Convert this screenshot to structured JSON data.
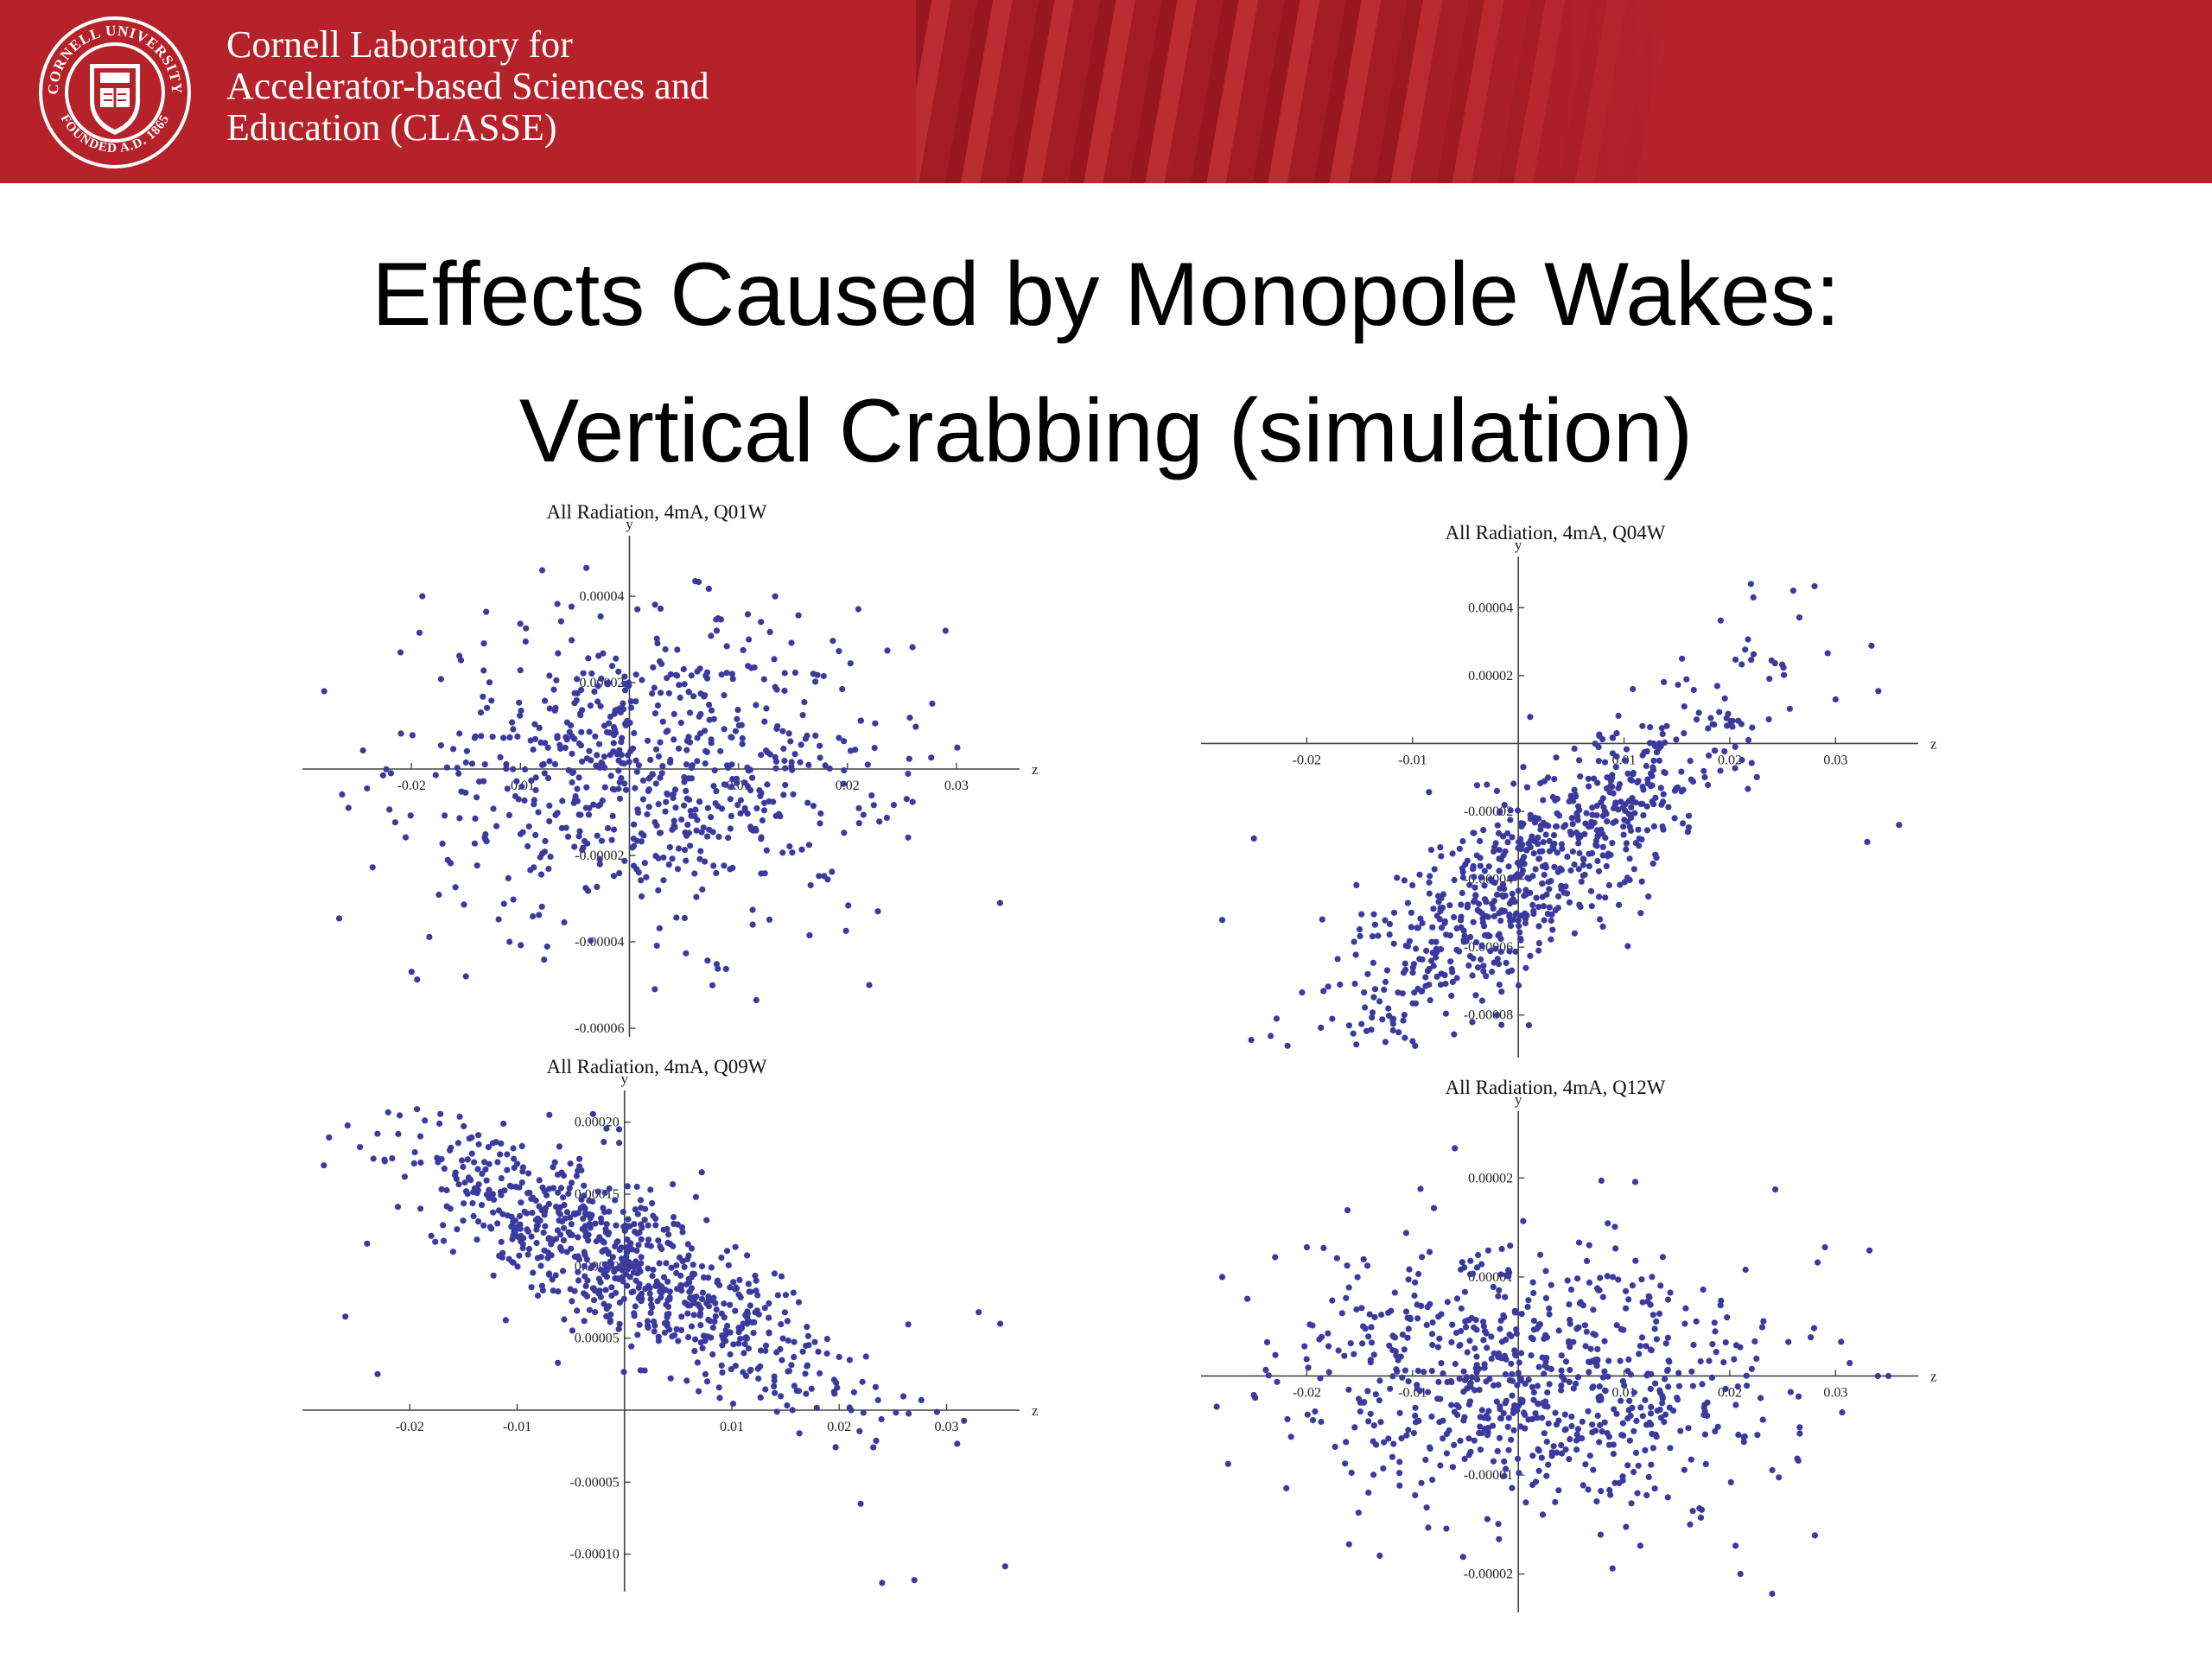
{
  "header": {
    "org_line1": "Cornell Laboratory for",
    "org_line2": "Accelerator-based Sciences and",
    "org_line3": "Education (CLASSE)",
    "seal_text_top": "CORNELL UNIVERSITY",
    "seal_text_bottom": "FOUNDED A.D. 1865",
    "colors": {
      "banner": "#b5222a",
      "text": "#ffffff"
    }
  },
  "slide": {
    "title_line1": "Effects Caused by Monopole Wakes:",
    "title_line2": "Vertical Crabbing (simulation)"
  },
  "chart_data": [
    {
      "type": "scatter",
      "title": "All Radiation, 4mA, Q01W",
      "xlabel": "z",
      "ylabel": "y",
      "xlim": [
        -0.03,
        0.035
      ],
      "ylim": [
        -6e-05,
        5e-05
      ],
      "xticks": [
        -0.02,
        -0.01,
        0.01,
        0.02,
        0.03
      ],
      "xtick_labels": [
        "-0.02",
        "-0.01",
        "0.01",
        "0.02",
        "0.03"
      ],
      "yticks": [
        -6e-05,
        -4e-05,
        -2e-05,
        2e-05,
        4e-05
      ],
      "ytick_labels": [
        "-0.00006",
        "-0.00004",
        "-0.00002",
        "0.00002",
        "0.00004"
      ],
      "marker_color": "#3b3b9e",
      "distribution": {
        "count": 700,
        "x_mean": 0.002,
        "x_sd": 0.011,
        "y_intercept": 0.0,
        "y_slope": 0.0,
        "y_sd": 1.7e-05
      },
      "points": [
        [
          -0.019,
          4e-05
        ],
        [
          -0.008,
          4.6e-05
        ],
        [
          0.021,
          3.7e-05
        ],
        [
          0.029,
          3.2e-05
        ],
        [
          -0.028,
          1.8e-05
        ],
        [
          -0.021,
          2.7e-05
        ],
        [
          0.034,
          -3.1e-05
        ],
        [
          -0.011,
          -4e-05
        ],
        [
          0.022,
          -5e-05
        ],
        [
          -0.015,
          -4.8e-05
        ]
      ]
    },
    {
      "type": "scatter",
      "title": "All Radiation, 4mA, Q04W",
      "xlabel": "z",
      "ylabel": "y",
      "xlim": [
        -0.03,
        0.037
      ],
      "ylim": [
        -9e-05,
        5e-05
      ],
      "xticks": [
        -0.02,
        -0.01,
        0.01,
        0.02,
        0.03
      ],
      "xtick_labels": [
        "-0.02",
        "-0.01",
        "0.01",
        "0.02",
        "0.03"
      ],
      "yticks": [
        -8e-05,
        -6e-05,
        -4e-05,
        -2e-05,
        2e-05,
        4e-05
      ],
      "ytick_labels": [
        "-0.00008",
        "-0.00006",
        "-0.00004",
        "-0.00002",
        "0.00002",
        "0.00004"
      ],
      "marker_color": "#3b3b9e",
      "distribution": {
        "count": 750,
        "x_mean": 0.002,
        "x_sd": 0.01,
        "y_intercept": -4e-05,
        "y_slope": 0.0022,
        "y_sd": 1.4e-05
      },
      "points": [
        [
          0.022,
          4.7e-05
        ],
        [
          0.026,
          4.5e-05
        ],
        [
          0.03,
          1.3e-05
        ],
        [
          -0.028,
          -5.2e-05
        ],
        [
          -0.025,
          -2.8e-05
        ],
        [
          0.036,
          -2.4e-05
        ],
        [
          0.033,
          -2.9e-05
        ],
        [
          0.001,
          -8.3e-05
        ],
        [
          -0.002,
          -8e-05
        ]
      ]
    },
    {
      "type": "scatter",
      "title": "All Radiation, 4mA, Q09W",
      "xlabel": "z",
      "ylabel": "y",
      "xlim": [
        -0.03,
        0.036
      ],
      "ylim": [
        -0.00012,
        0.00021
      ],
      "xticks": [
        -0.02,
        -0.01,
        0.01,
        0.02,
        0.03
      ],
      "xtick_labels": [
        "-0.02",
        "-0.01",
        "0.01",
        "0.02",
        "0.03"
      ],
      "yticks": [
        -0.0001,
        -5e-05,
        5e-05,
        0.0001,
        0.00015,
        0.0002
      ],
      "ytick_labels": [
        "-0.00010",
        "-0.00005",
        "0.00005",
        "0.00010",
        "0.00015",
        "0.00020"
      ],
      "marker_color": "#3b3b9e",
      "distribution": {
        "count": 800,
        "x_mean": 0.0,
        "x_sd": 0.011,
        "y_intercept": 0.0001,
        "y_slope": -0.004,
        "y_sd": 2.8e-05
      },
      "points": [
        [
          -0.028,
          0.00017
        ],
        [
          -0.026,
          6.5e-05
        ],
        [
          -0.023,
          2.5e-05
        ],
        [
          0.033,
          6.8e-05
        ],
        [
          0.035,
          6e-05
        ],
        [
          0.024,
          -0.00012
        ],
        [
          0.027,
          -0.000118
        ],
        [
          0.022,
          -6.5e-05
        ],
        [
          -0.007,
          0.000205
        ],
        [
          -0.0005,
          0.000195
        ]
      ]
    },
    {
      "type": "scatter",
      "title": "All Radiation, 4mA, Q12W",
      "xlabel": "z",
      "ylabel": "y",
      "xlim": [
        -0.03,
        0.037
      ],
      "ylim": [
        -2.3e-05,
        2.5e-05
      ],
      "xticks": [
        -0.02,
        -0.01,
        0.01,
        0.02,
        0.03
      ],
      "xtick_labels": [
        "-0.02",
        "-0.01",
        "0.01",
        "0.02",
        "0.03"
      ],
      "yticks": [
        -2e-05,
        -1e-05,
        1e-05,
        2e-05
      ],
      "ytick_labels": [
        "-0.00002",
        "-0.00001",
        "0.00001",
        "0.00002"
      ],
      "marker_color": "#3b3b9e",
      "distribution": {
        "count": 750,
        "x_mean": 0.001,
        "x_sd": 0.011,
        "y_intercept": 0.0,
        "y_slope": 0.0,
        "y_sd": 6.8e-06
      },
      "points": [
        [
          -0.02,
          1.3e-05
        ],
        [
          -0.023,
          1.2e-05
        ],
        [
          -0.028,
          1e-05
        ],
        [
          -0.006,
          2.3e-05
        ],
        [
          0.029,
          1.3e-05
        ],
        [
          0.034,
          0.0
        ],
        [
          0.035,
          0.0
        ],
        [
          0.021,
          -2e-05
        ],
        [
          0.024,
          -2.2e-05
        ],
        [
          -0.016,
          -1.7e-05
        ]
      ]
    }
  ]
}
